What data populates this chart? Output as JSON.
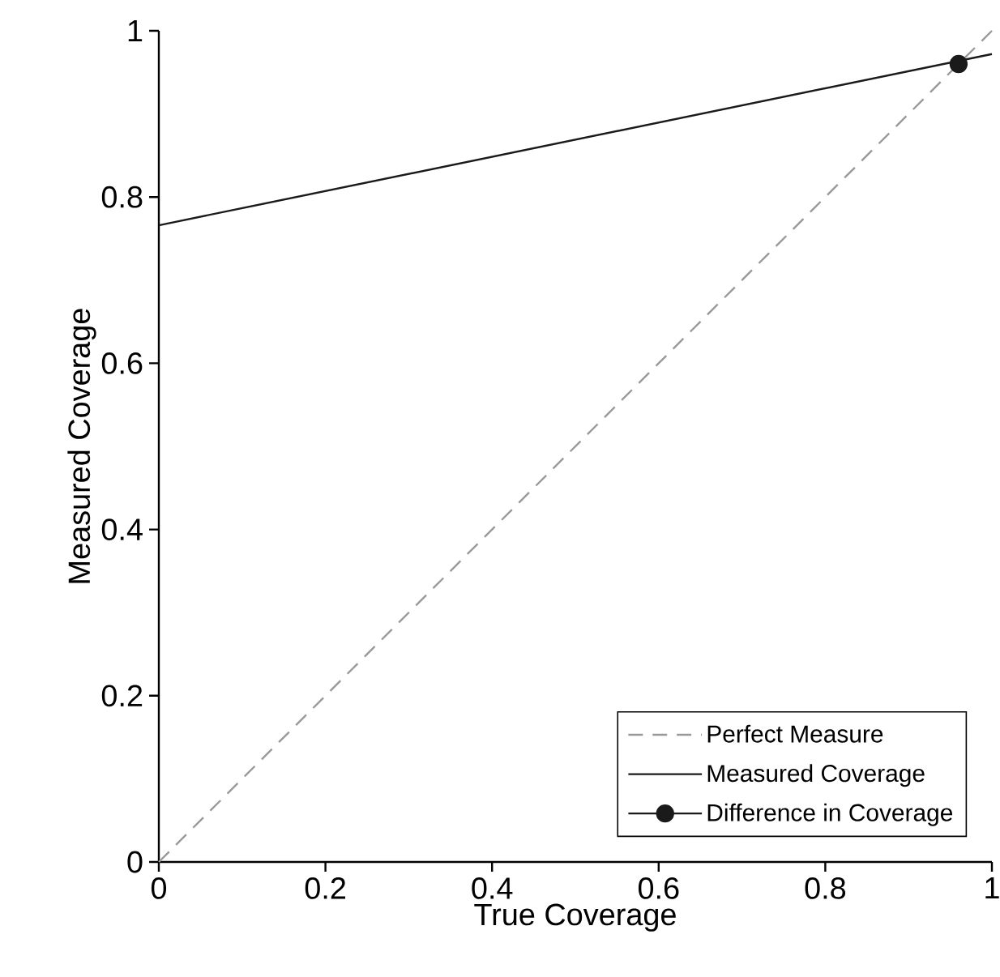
{
  "chart_data": {
    "type": "line",
    "xlabel": "True Coverage",
    "ylabel": "Measured Coverage",
    "xlim": [
      0,
      1
    ],
    "ylim": [
      0,
      1
    ],
    "xticks": [
      0,
      0.2,
      0.4,
      0.6,
      0.8,
      1
    ],
    "yticks": [
      0,
      0.2,
      0.4,
      0.6,
      0.8,
      1
    ],
    "grid": false,
    "legend": "bottom right",
    "series": [
      {
        "name": "Perfect Measure",
        "color": "#999999",
        "line_style": "dashed",
        "x": [
          0,
          1
        ],
        "values": [
          0,
          1
        ]
      },
      {
        "name": "Measured Coverage",
        "color": "#1a1a1a",
        "line_style": "solid",
        "x": [
          0,
          1
        ],
        "values": [
          0.766,
          0.972
        ]
      },
      {
        "name": "Difference in Coverage",
        "color": "#1a1a1a",
        "line_style": "solid",
        "marker": "circle",
        "x": [
          0.96
        ],
        "values": [
          0.96
        ]
      }
    ]
  }
}
